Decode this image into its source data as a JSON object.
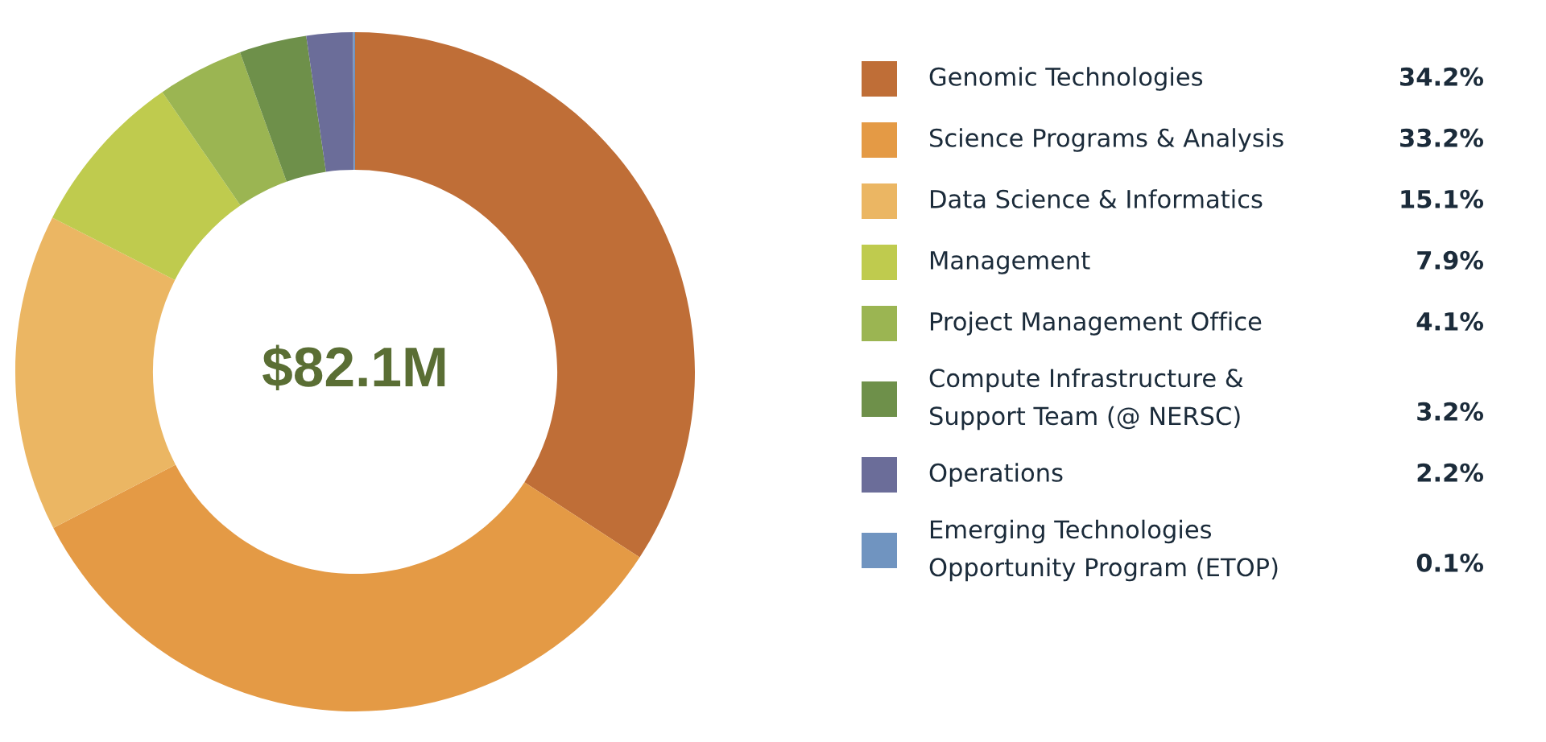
{
  "chart_data": {
    "type": "donut",
    "categories": [
      "Genomic Technologies",
      "Science Programs & Analysis",
      "Data Science & Informatics",
      "Management",
      "Project Management Office",
      "Compute Infrastructure &\nSupport Team (@ NERSC)",
      "Operations",
      "Emerging Technologies\nOpportunity Program (ETOP)"
    ],
    "values": [
      34.2,
      33.2,
      15.1,
      7.9,
      4.1,
      3.2,
      2.2,
      0.1
    ],
    "value_labels": [
      "34.2%",
      "33.2%",
      "15.1%",
      "7.9%",
      "4.1%",
      "3.2%",
      "2.2%",
      "0.1%"
    ],
    "colors": [
      "#bf6e37",
      "#e49a45",
      "#ebb663",
      "#bfcb4e",
      "#9bb552",
      "#6e904a",
      "#6b6d99",
      "#7094c0"
    ],
    "annotations": [
      "$82.1M"
    ],
    "legend": "right"
  }
}
